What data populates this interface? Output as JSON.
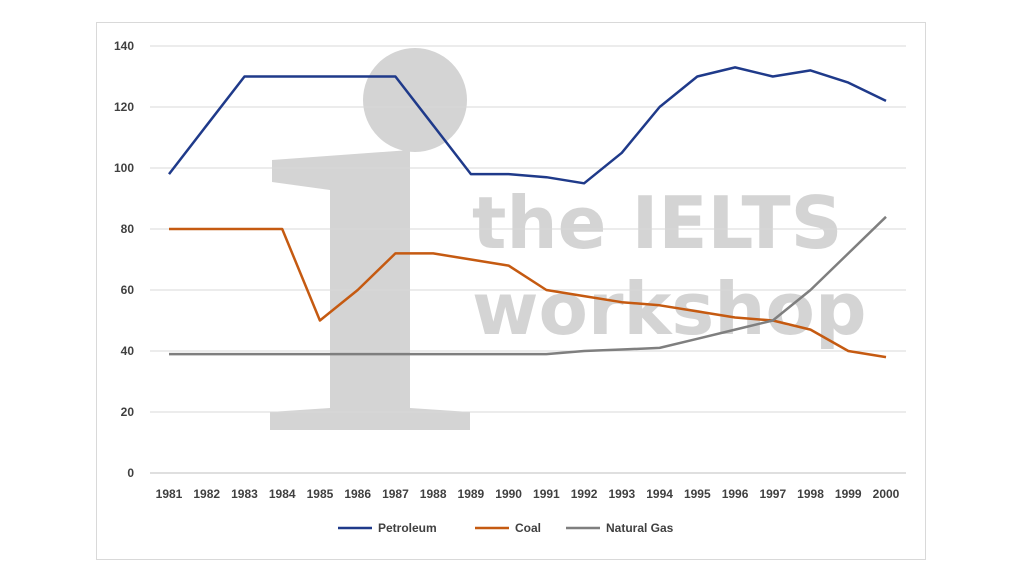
{
  "watermark": {
    "line1": "the IELTS",
    "line2": "workshop",
    "color": "#d4d4d4"
  },
  "chart_data": {
    "type": "line",
    "title": "",
    "xlabel": "",
    "ylabel": "",
    "x": [
      "1981",
      "1982",
      "1983",
      "1984",
      "1985",
      "1986",
      "1987",
      "1988",
      "1989",
      "1990",
      "1991",
      "1992",
      "1993",
      "1994",
      "1995",
      "1996",
      "1997",
      "1998",
      "1999",
      "2000"
    ],
    "ylim": [
      0,
      140
    ],
    "yticks": [
      0,
      20,
      40,
      60,
      80,
      100,
      120,
      140
    ],
    "grid": true,
    "legend_position": "bottom",
    "series": [
      {
        "name": "Petroleum",
        "color": "#1f3a8a",
        "values": [
          98,
          114,
          130,
          130,
          130,
          130,
          130,
          114,
          98,
          98,
          97,
          95,
          105,
          120,
          130,
          133,
          130,
          132,
          128,
          122
        ]
      },
      {
        "name": "Coal",
        "color": "#c55a11",
        "values": [
          80,
          80,
          80,
          80,
          50,
          60,
          72,
          72,
          70,
          68,
          60,
          58,
          56,
          55,
          53,
          51,
          50,
          47,
          40,
          38
        ]
      },
      {
        "name": "Natural Gas",
        "color": "#7f7f7f",
        "values": [
          39,
          39,
          39,
          39,
          39,
          39,
          39,
          39,
          39,
          39,
          39,
          40,
          40.5,
          41,
          44,
          47,
          50,
          60,
          72,
          84
        ]
      }
    ]
  }
}
